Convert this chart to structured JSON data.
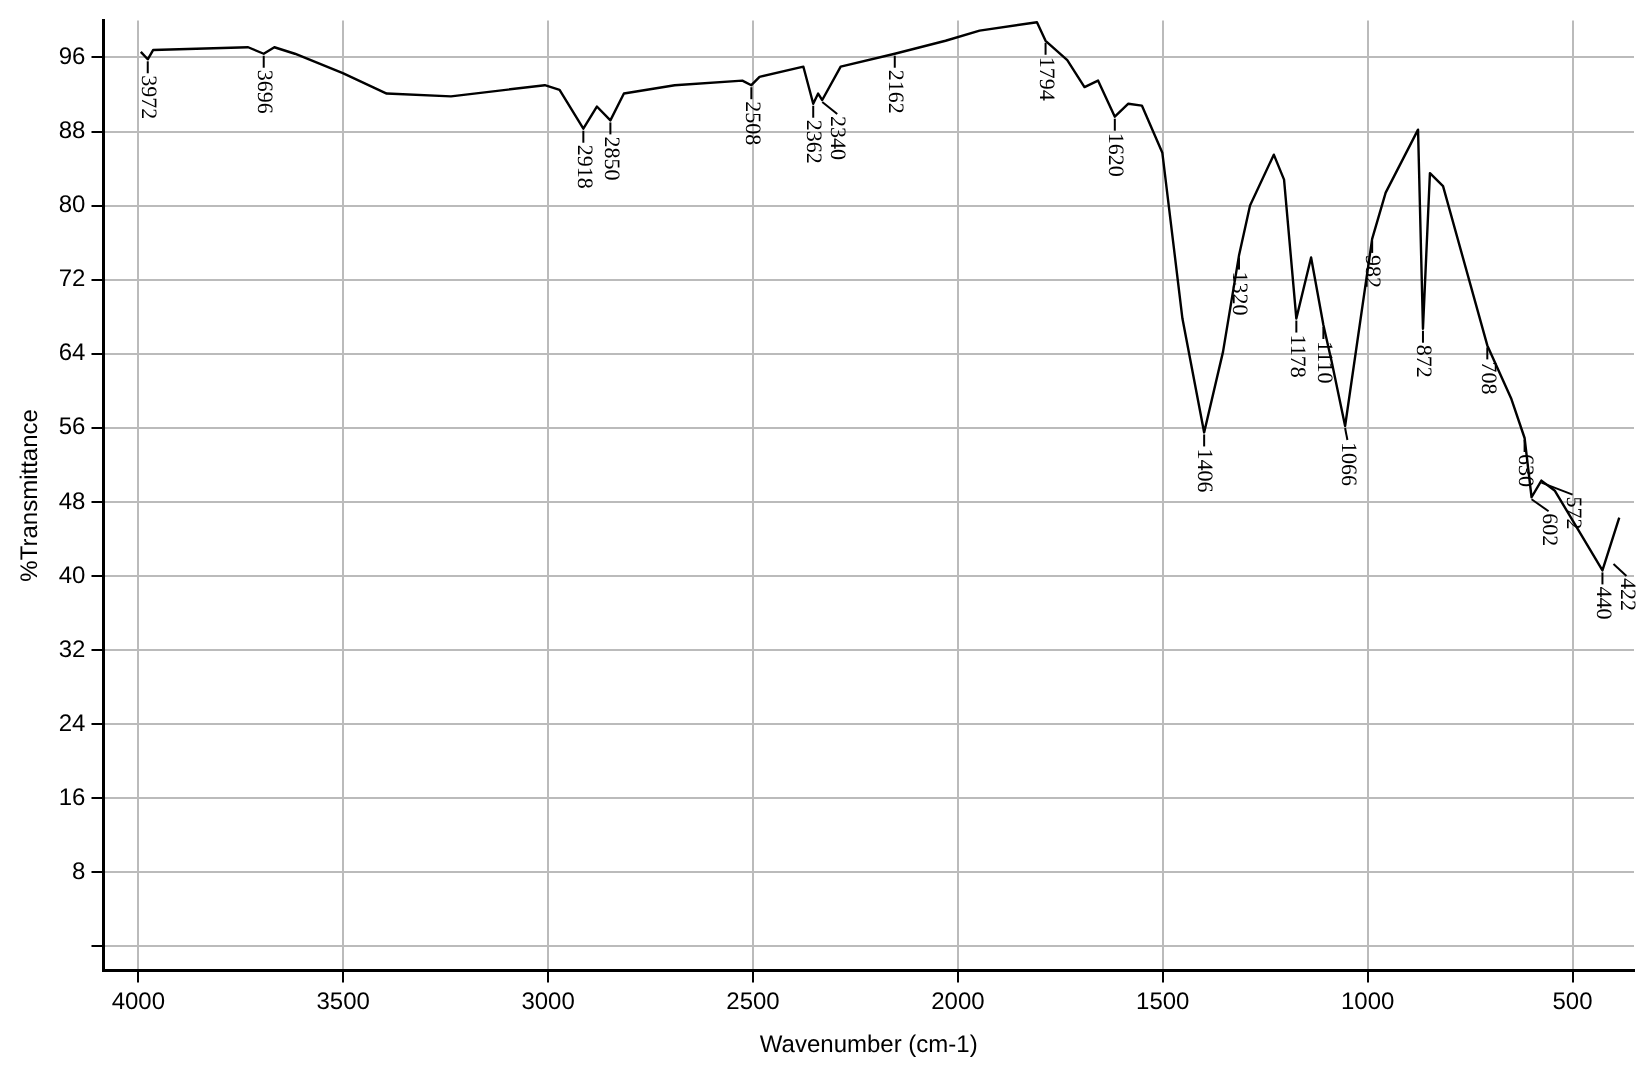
{
  "chart_data": {
    "type": "line",
    "xlabel": "Wavenumber (cm-1)",
    "ylabel": "%Transmittance",
    "xlim": [
      4085,
      350
    ],
    "xticks": [
      4000,
      3500,
      3000,
      2500,
      2000,
      1500,
      1000,
      500
    ],
    "ylim": [
      -2.6,
      100
    ],
    "yticks": [
      {
        "value": 0,
        "label": null
      },
      8,
      16,
      24,
      32,
      40,
      48,
      56,
      64,
      72,
      80,
      88,
      96
    ],
    "grid": true,
    "legend": false,
    "marker": "none",
    "line_style": "solid",
    "series": [
      {
        "color": "#000000",
        "x": [
          3994,
          3977,
          3964,
          3732,
          3694,
          3668,
          3618,
          3501,
          3394,
          3237,
          3008,
          2972,
          2914,
          2881,
          2848,
          2815,
          2691,
          2526,
          2504,
          2484,
          2377,
          2353,
          2341,
          2331,
          2286,
          2154,
          2030,
          1947,
          1807,
          1786,
          1733,
          1691,
          1658,
          1617,
          1584,
          1551,
          1501,
          1452,
          1399,
          1353,
          1314,
          1287,
          1229,
          1204,
          1174,
          1138,
          1108,
          1088,
          1055,
          989,
          956,
          877,
          865,
          848,
          816,
          708,
          650,
          617,
          600,
          576,
          543,
          427,
          386
        ],
        "values": [
          96.6,
          95.8,
          96.8,
          97.1,
          96.4,
          97.1,
          96.4,
          94.3,
          92.1,
          91.8,
          93.0,
          92.5,
          88.3,
          90.7,
          89.2,
          92.1,
          93.0,
          93.5,
          93.0,
          93.9,
          95.0,
          91.0,
          92.1,
          91.4,
          95.0,
          96.4,
          97.8,
          98.9,
          99.8,
          97.8,
          95.7,
          92.8,
          93.5,
          89.6,
          91.0,
          90.8,
          85.7,
          67.8,
          55.5,
          64.2,
          74.6,
          80.0,
          85.5,
          82.8,
          67.8,
          74.4,
          67.1,
          63.2,
          56.2,
          76.4,
          81.4,
          88.2,
          66.7,
          83.5,
          82.1,
          64.9,
          59.2,
          54.9,
          48.5,
          50.3,
          49.2,
          40.6,
          46.3
        ]
      }
    ],
    "annotations": [
      {
        "text": "3972",
        "x": 3977,
        "y": 95.8
      },
      {
        "text": "3696",
        "x": 3694,
        "y": 96.4
      },
      {
        "text": "2918",
        "x": 2914,
        "y": 88.3
      },
      {
        "text": "2850",
        "x": 2848,
        "y": 89.2
      },
      {
        "text": "2508",
        "x": 2504,
        "y": 93.0
      },
      {
        "text": "2362",
        "x": 2353,
        "y": 91.0
      },
      {
        "text": "2340",
        "x": 2331,
        "y": 91.4
      },
      {
        "text": "2162",
        "x": 2154,
        "y": 96.4
      },
      {
        "text": "1794",
        "x": 1786,
        "y": 97.8
      },
      {
        "text": "1620",
        "x": 1617,
        "y": 89.6
      },
      {
        "text": "1406",
        "x": 1399,
        "y": 55.5
      },
      {
        "text": "1320",
        "x": 1314,
        "y": 74.6
      },
      {
        "text": "1178",
        "x": 1174,
        "y": 67.8
      },
      {
        "text": "1110",
        "x": 1108,
        "y": 67.1
      },
      {
        "text": "1066",
        "x": 1055,
        "y": 56.2
      },
      {
        "text": "982",
        "x": 989,
        "y": 76.4
      },
      {
        "text": "872",
        "x": 865,
        "y": 66.7
      },
      {
        "text": "708",
        "x": 708,
        "y": 64.9
      },
      {
        "text": "630",
        "x": 617,
        "y": 54.9
      },
      {
        "text": "602",
        "x": 600,
        "y": 48.5
      },
      {
        "text": "572",
        "x": 576,
        "y": 50.3
      },
      {
        "text": "440",
        "x": 427,
        "y": 40.6
      },
      {
        "text": "422",
        "x": 400,
        "y": 41.5
      }
    ]
  }
}
